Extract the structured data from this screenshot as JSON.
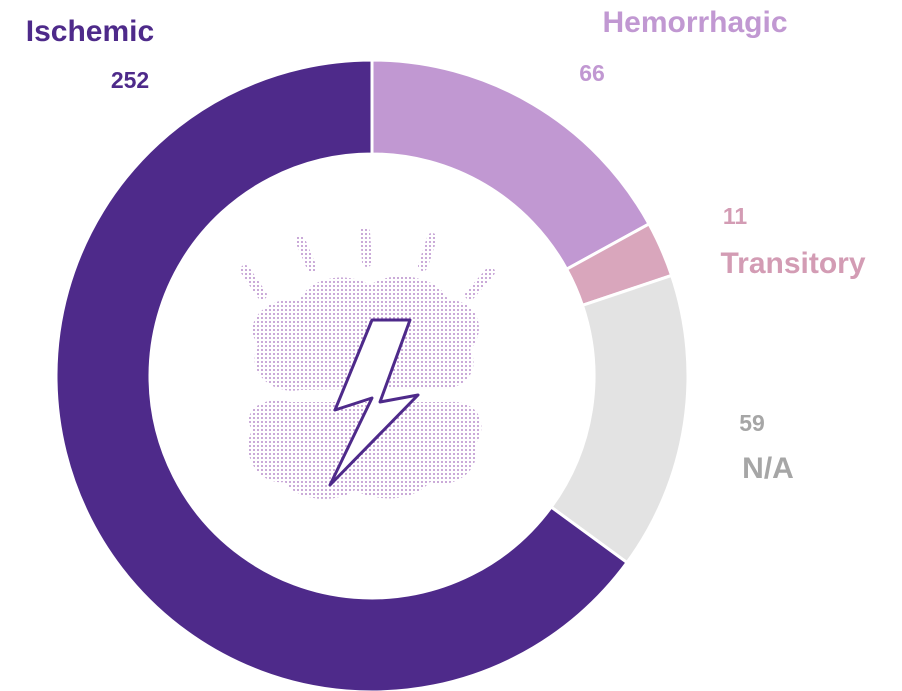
{
  "chart_data": {
    "type": "donut",
    "categories": [
      "Hemorrhagic",
      "Transitory",
      "N/A",
      "Ischemic"
    ],
    "values": [
      66,
      11,
      59,
      252
    ],
    "colors": [
      "#c198d2",
      "#d9a6bc",
      "#e3e3e3",
      "#4e2a8a"
    ],
    "label_colors": [
      "#c198d2",
      "#d39cb4",
      "#a6a6a6",
      "#4e2a8a"
    ]
  }
}
